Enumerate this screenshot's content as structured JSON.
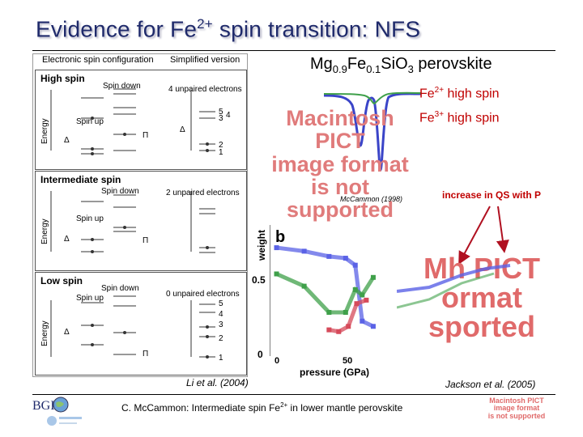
{
  "title": {
    "main": "Evidence for Fe",
    "sup": "2+",
    "rest": " spin transition: NFS"
  },
  "spin_panel": {
    "col1_header": "Electronic spin configuration",
    "col2_header": "Simplified version",
    "boxes": [
      {
        "title": "High spin",
        "unpaired": "4 unpaired electrons",
        "spin_down": "Spin down",
        "spin_up": "Spin up"
      },
      {
        "title": "Intermediate spin",
        "unpaired": "2 unpaired electrons",
        "spin_down": "Spin down",
        "spin_up": "Spin up"
      },
      {
        "title": "Low spin",
        "unpaired": "0 unpaired electrons",
        "spin_down": "Spin down",
        "spin_up": "Spin up"
      }
    ],
    "energy_label": "Energy",
    "delta": "Δ",
    "pi": "Π",
    "levels_high": [
      "5",
      "3",
      "4",
      "2",
      "1"
    ],
    "levels_low": [
      "5",
      "4",
      "3",
      "2",
      "1"
    ],
    "citation": "Li et al. (2004)"
  },
  "formula": {
    "a": "Mg",
    "a_sub": "0.9",
    "b": "Fe",
    "b_sub": "0.1",
    "c": "SiO",
    "c_sub": "3",
    "d": " perovskite"
  },
  "legend": {
    "fe2": {
      "main": "Fe",
      "sup": "2+",
      "rest": " high spin"
    },
    "fe3": {
      "main": "Fe",
      "sup": "3+",
      "rest": " high spin"
    }
  },
  "pict_placeholder_1": [
    "Macintosh PICT",
    "image format",
    "is not supported"
  ],
  "pict_placeholder_2": [
    "Mh PICT",
    "ormat",
    "sported"
  ],
  "pict_placeholder_3": [
    "Macintosh PICT",
    "image format",
    "is not supported"
  ],
  "mccammon_cite": "McCammon (1998)",
  "qs_note": "increase in QS with P",
  "plot": {
    "panel_letter": "b",
    "ylabel": "weight",
    "xlabel": "pressure (GPa)",
    "yticks": [
      "0",
      "0.5"
    ],
    "xticks": [
      "0",
      "50"
    ]
  },
  "jackson_cite": "Jackson et al. (2005)",
  "footer": {
    "main": "C. McCammon: Intermediate spin Fe",
    "sup": "2+",
    "rest": " in lower mantle perovskite"
  },
  "logo_text": "BGI",
  "colors": {
    "title": "#1f2a6b",
    "red_label": "#c00000",
    "series_blue": "#5a62e6",
    "series_green": "#3fa04a",
    "series_red": "#d64a5a"
  },
  "chart_data": {
    "type": "line",
    "ylabel": "weight",
    "xlabel": "pressure (GPa)",
    "ylim": [
      0,
      0.75
    ],
    "xlim": [
      -5,
      80
    ],
    "series": [
      {
        "color": "#5a62e6",
        "points": [
          [
            0,
            0.62
          ],
          [
            20,
            0.6
          ],
          [
            38,
            0.57
          ],
          [
            50,
            0.56
          ],
          [
            57,
            0.52
          ],
          [
            62,
            0.2
          ],
          [
            70,
            0.17
          ]
        ]
      },
      {
        "color": "#3fa04a",
        "points": [
          [
            0,
            0.47
          ],
          [
            20,
            0.4
          ],
          [
            38,
            0.25
          ],
          [
            50,
            0.25
          ],
          [
            57,
            0.38
          ],
          [
            62,
            0.35
          ],
          [
            70,
            0.45
          ]
        ]
      },
      {
        "color": "#d64a5a",
        "points": [
          [
            38,
            0.15
          ],
          [
            45,
            0.14
          ],
          [
            52,
            0.17
          ],
          [
            58,
            0.3
          ],
          [
            65,
            0.32
          ]
        ]
      }
    ]
  }
}
